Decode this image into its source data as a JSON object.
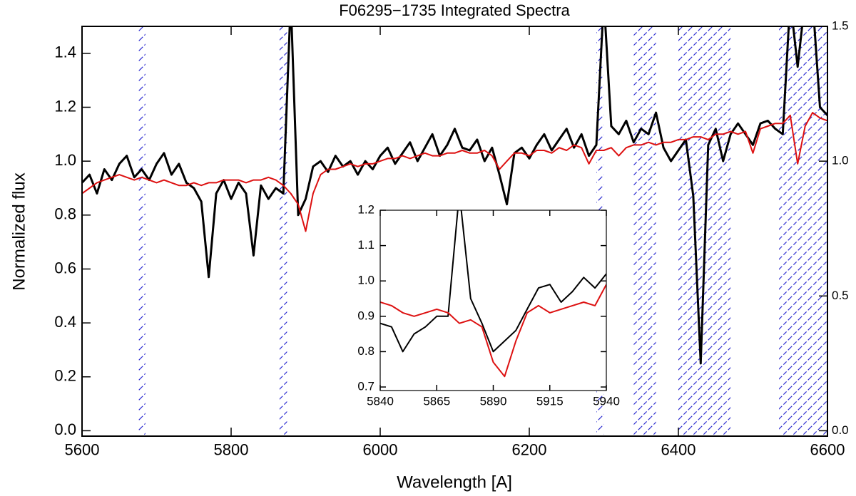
{
  "chart_data": [
    {
      "type": "line",
      "title": "F06295−1735 Integrated Spectra",
      "xlabel": "Wavelength [A]",
      "ylabel": "Normalized flux",
      "xlim": [
        5600,
        6600
      ],
      "xticks": [
        5600,
        5800,
        6000,
        6200,
        6400,
        6600
      ],
      "ylim": [
        -0.02,
        1.5
      ],
      "yticks": [
        {
          "value": 0,
          "label": "0.0"
        },
        0.2,
        0.4,
        0.6,
        0.8,
        {
          "value": 1,
          "label": "1.0"
        },
        1.2,
        1.4
      ],
      "y2lim": [
        -0.02,
        1.5
      ],
      "y2ticks": [
        {
          "value": 0,
          "label": "0.0"
        },
        0.5,
        {
          "value": 1,
          "label": "1.0"
        },
        {
          "value": 1.5,
          "label": "1.5"
        }
      ],
      "masked_regions": [
        [
          5675,
          5685
        ],
        [
          5865,
          5875
        ],
        [
          6290,
          6300
        ],
        [
          6340,
          6370
        ],
        [
          6400,
          6470
        ],
        [
          6535,
          6600
        ]
      ],
      "masked_color": "#2a2ad0",
      "x": [
        5600,
        5610,
        5620,
        5630,
        5640,
        5650,
        5660,
        5670,
        5680,
        5690,
        5700,
        5710,
        5720,
        5730,
        5740,
        5750,
        5760,
        5770,
        5780,
        5790,
        5800,
        5810,
        5820,
        5830,
        5840,
        5850,
        5860,
        5870,
        5880,
        5890,
        5900,
        5910,
        5920,
        5930,
        5940,
        5950,
        5960,
        5970,
        5980,
        5990,
        6000,
        6010,
        6020,
        6030,
        6040,
        6050,
        6060,
        6070,
        6080,
        6090,
        6100,
        6110,
        6120,
        6130,
        6140,
        6150,
        6160,
        6170,
        6180,
        6190,
        6200,
        6210,
        6220,
        6230,
        6240,
        6250,
        6260,
        6270,
        6280,
        6290,
        6300,
        6310,
        6320,
        6330,
        6340,
        6350,
        6360,
        6370,
        6380,
        6390,
        6400,
        6410,
        6420,
        6430,
        6440,
        6450,
        6460,
        6470,
        6480,
        6490,
        6500,
        6510,
        6520,
        6530,
        6540,
        6550,
        6560,
        6570,
        6580,
        6590,
        6600
      ],
      "series": [
        {
          "color": "#000000",
          "width": 3,
          "values": [
            0.92,
            0.95,
            0.88,
            0.97,
            0.93,
            0.99,
            1.02,
            0.94,
            0.97,
            0.93,
            0.99,
            1.03,
            0.95,
            0.99,
            0.92,
            0.9,
            0.85,
            0.57,
            0.88,
            0.93,
            0.86,
            0.92,
            0.88,
            0.65,
            0.91,
            0.86,
            0.9,
            0.88,
            1.6,
            0.8,
            0.86,
            0.98,
            1.0,
            0.96,
            1.02,
            0.98,
            1.0,
            0.95,
            1.0,
            0.97,
            1.02,
            1.05,
            0.99,
            1.03,
            1.07,
            1.0,
            1.05,
            1.1,
            1.02,
            1.06,
            1.12,
            1.05,
            1.04,
            1.08,
            1.0,
            1.05,
            0.95,
            0.84,
            1.03,
            1.05,
            1.01,
            1.06,
            1.1,
            1.04,
            1.08,
            1.12,
            1.05,
            1.1,
            1.02,
            1.06,
            1.6,
            1.13,
            1.1,
            1.15,
            1.07,
            1.12,
            1.1,
            1.18,
            1.05,
            1.0,
            1.04,
            1.08,
            0.87,
            0.25,
            1.06,
            1.12,
            1.0,
            1.1,
            1.14,
            1.1,
            1.06,
            1.14,
            1.15,
            1.12,
            1.1,
            1.6,
            1.35,
            1.6,
            1.6,
            1.2,
            1.17
          ]
        },
        {
          "color": "#dd1111",
          "width": 2,
          "values": [
            0.88,
            0.9,
            0.92,
            0.93,
            0.94,
            0.95,
            0.94,
            0.93,
            0.94,
            0.93,
            0.92,
            0.93,
            0.92,
            0.91,
            0.91,
            0.92,
            0.91,
            0.92,
            0.92,
            0.93,
            0.93,
            0.93,
            0.92,
            0.93,
            0.93,
            0.94,
            0.93,
            0.91,
            0.88,
            0.84,
            0.74,
            0.88,
            0.95,
            0.97,
            0.97,
            0.98,
            0.99,
            0.98,
            0.99,
            0.99,
            1.0,
            1.01,
            1.01,
            1.02,
            1.01,
            1.02,
            1.03,
            1.02,
            1.02,
            1.03,
            1.03,
            1.04,
            1.03,
            1.03,
            1.04,
            1.02,
            0.97,
            1.0,
            1.03,
            1.03,
            1.02,
            1.04,
            1.04,
            1.03,
            1.05,
            1.04,
            1.06,
            1.05,
            0.99,
            1.04,
            1.04,
            1.05,
            1.02,
            1.05,
            1.06,
            1.06,
            1.07,
            1.06,
            1.07,
            1.07,
            1.08,
            1.08,
            1.09,
            1.09,
            1.08,
            1.1,
            1.1,
            1.11,
            1.1,
            1.11,
            1.03,
            1.12,
            1.13,
            1.14,
            1.14,
            1.17,
            0.99,
            1.13,
            1.18,
            1.16,
            1.15
          ]
        }
      ]
    },
    {
      "type": "line",
      "xlim": [
        5840,
        5940
      ],
      "xticks": [
        5840,
        5865,
        5890,
        5915,
        5940
      ],
      "ylim": [
        0.69,
        1.2
      ],
      "yticks": [
        0.7,
        0.8,
        0.9,
        {
          "value": 1,
          "label": "1.0"
        },
        1.1,
        1.2
      ],
      "x": [
        5840,
        5845,
        5850,
        5855,
        5860,
        5865,
        5870,
        5875,
        5880,
        5885,
        5890,
        5895,
        5900,
        5905,
        5910,
        5915,
        5920,
        5925,
        5930,
        5935,
        5940
      ],
      "series": [
        {
          "color": "#000000",
          "width": 2,
          "values": [
            0.88,
            0.87,
            0.8,
            0.85,
            0.87,
            0.9,
            0.9,
            1.25,
            0.95,
            0.88,
            0.8,
            0.83,
            0.86,
            0.92,
            0.98,
            0.99,
            0.94,
            0.97,
            1.01,
            0.98,
            1.02
          ]
        },
        {
          "color": "#dd1111",
          "width": 2,
          "values": [
            0.94,
            0.93,
            0.91,
            0.9,
            0.91,
            0.92,
            0.91,
            0.88,
            0.89,
            0.87,
            0.77,
            0.73,
            0.83,
            0.91,
            0.93,
            0.91,
            0.92,
            0.93,
            0.94,
            0.93,
            0.99
          ]
        }
      ]
    }
  ]
}
